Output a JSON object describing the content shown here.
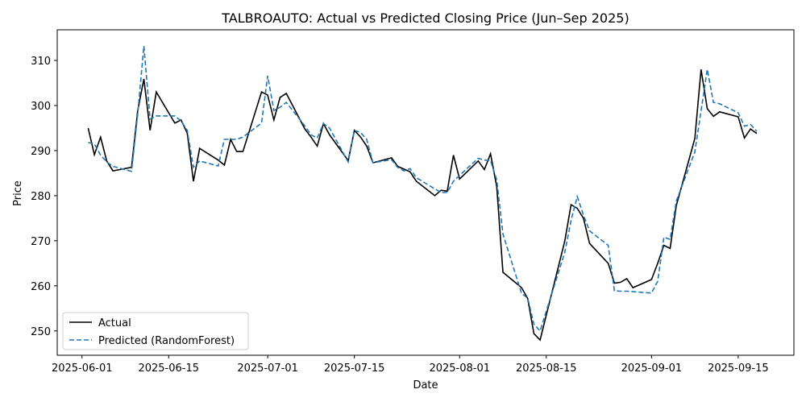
{
  "chart_data": {
    "type": "line",
    "title": "TALBROAUTO: Actual vs Predicted Closing Price (Jun–Sep 2025)",
    "xlabel": "Date",
    "ylabel": "Price",
    "x": [
      "2025-06-02",
      "2025-06-03",
      "2025-06-04",
      "2025-06-05",
      "2025-06-06",
      "2025-06-09",
      "2025-06-10",
      "2025-06-11",
      "2025-06-12",
      "2025-06-13",
      "2025-06-16",
      "2025-06-17",
      "2025-06-18",
      "2025-06-19",
      "2025-06-20",
      "2025-06-23",
      "2025-06-24",
      "2025-06-25",
      "2025-06-26",
      "2025-06-27",
      "2025-06-30",
      "2025-07-01",
      "2025-07-02",
      "2025-07-03",
      "2025-07-04",
      "2025-07-07",
      "2025-07-08",
      "2025-07-09",
      "2025-07-10",
      "2025-07-11",
      "2025-07-14",
      "2025-07-15",
      "2025-07-16",
      "2025-07-17",
      "2025-07-18",
      "2025-07-21",
      "2025-07-22",
      "2025-07-23",
      "2025-07-24",
      "2025-07-25",
      "2025-07-28",
      "2025-07-29",
      "2025-07-30",
      "2025-07-31",
      "2025-08-01",
      "2025-08-04",
      "2025-08-05",
      "2025-08-06",
      "2025-08-07",
      "2025-08-08",
      "2025-08-11",
      "2025-08-12",
      "2025-08-13",
      "2025-08-14",
      "2025-08-18",
      "2025-08-19",
      "2025-08-20",
      "2025-08-21",
      "2025-08-22",
      "2025-08-25",
      "2025-08-26",
      "2025-08-27",
      "2025-08-28",
      "2025-08-29",
      "2025-09-01",
      "2025-09-02",
      "2025-09-03",
      "2025-09-04",
      "2025-09-05",
      "2025-09-08",
      "2025-09-09",
      "2025-09-10",
      "2025-09-11",
      "2025-09-12",
      "2025-09-15",
      "2025-09-16",
      "2025-09-17",
      "2025-09-18"
    ],
    "series": [
      {
        "name": "Actual",
        "color": "#000000",
        "dash": false,
        "values": [
          295.0,
          289.1,
          293.0,
          287.7,
          285.5,
          286.3,
          298.8,
          305.9,
          294.5,
          303.0,
          296.1,
          296.8,
          293.9,
          283.2,
          290.5,
          287.9,
          286.8,
          292.5,
          289.8,
          289.8,
          303.0,
          302.3,
          296.8,
          301.8,
          302.7,
          294.8,
          293.0,
          291.0,
          296.0,
          293.5,
          287.8,
          294.5,
          293.0,
          291.0,
          287.3,
          288.4,
          286.5,
          285.9,
          285.3,
          283.2,
          280.0,
          281.2,
          281.0,
          289.0,
          283.7,
          287.7,
          285.8,
          289.3,
          282.0,
          263.0,
          259.6,
          257.2,
          249.4,
          248.0,
          270.0,
          278.0,
          277.2,
          275.0,
          269.4,
          265.0,
          260.6,
          260.8,
          261.6,
          259.6,
          261.4,
          265.0,
          269.0,
          268.3,
          277.8,
          292.7,
          308.0,
          299.3,
          297.6,
          298.6,
          297.5,
          292.8,
          294.8,
          293.8
        ]
      },
      {
        "name": "Predicted (RandomForest)",
        "color": "#1f77b4",
        "dash": true,
        "values": [
          291.8,
          291.5,
          289.0,
          287.5,
          286.5,
          285.4,
          298.0,
          313.2,
          297.0,
          297.7,
          297.7,
          296.6,
          294.5,
          286.3,
          287.7,
          286.6,
          292.5,
          292.5,
          292.5,
          293.0,
          296.1,
          306.6,
          298.9,
          299.6,
          300.7,
          295.5,
          293.5,
          292.8,
          296.0,
          295.0,
          287.5,
          294.5,
          294.0,
          292.5,
          287.3,
          288.0,
          286.3,
          285.5,
          286.0,
          284.0,
          281.5,
          280.7,
          280.7,
          283.2,
          284.5,
          288.3,
          287.9,
          287.8,
          283.5,
          271.5,
          258.3,
          257.3,
          251.5,
          250.0,
          267.5,
          274.5,
          279.8,
          275.7,
          272.2,
          269.0,
          258.9,
          258.8,
          258.8,
          258.7,
          258.4,
          261.0,
          270.8,
          270.3,
          278.8,
          289.7,
          298.8,
          308.0,
          300.7,
          300.4,
          298.4,
          295.4,
          295.8,
          294.3
        ]
      }
    ],
    "xlim": [
      "2025-05-28",
      "2025-09-24"
    ],
    "xticks": [
      "2025-06-01",
      "2025-06-15",
      "2025-07-01",
      "2025-07-15",
      "2025-08-01",
      "2025-08-15",
      "2025-09-01",
      "2025-09-15"
    ],
    "ylim": [
      244.6,
      316.8
    ],
    "yticks": [
      250,
      260,
      270,
      280,
      290,
      300,
      310
    ],
    "grid": false,
    "legend": "lower left"
  }
}
